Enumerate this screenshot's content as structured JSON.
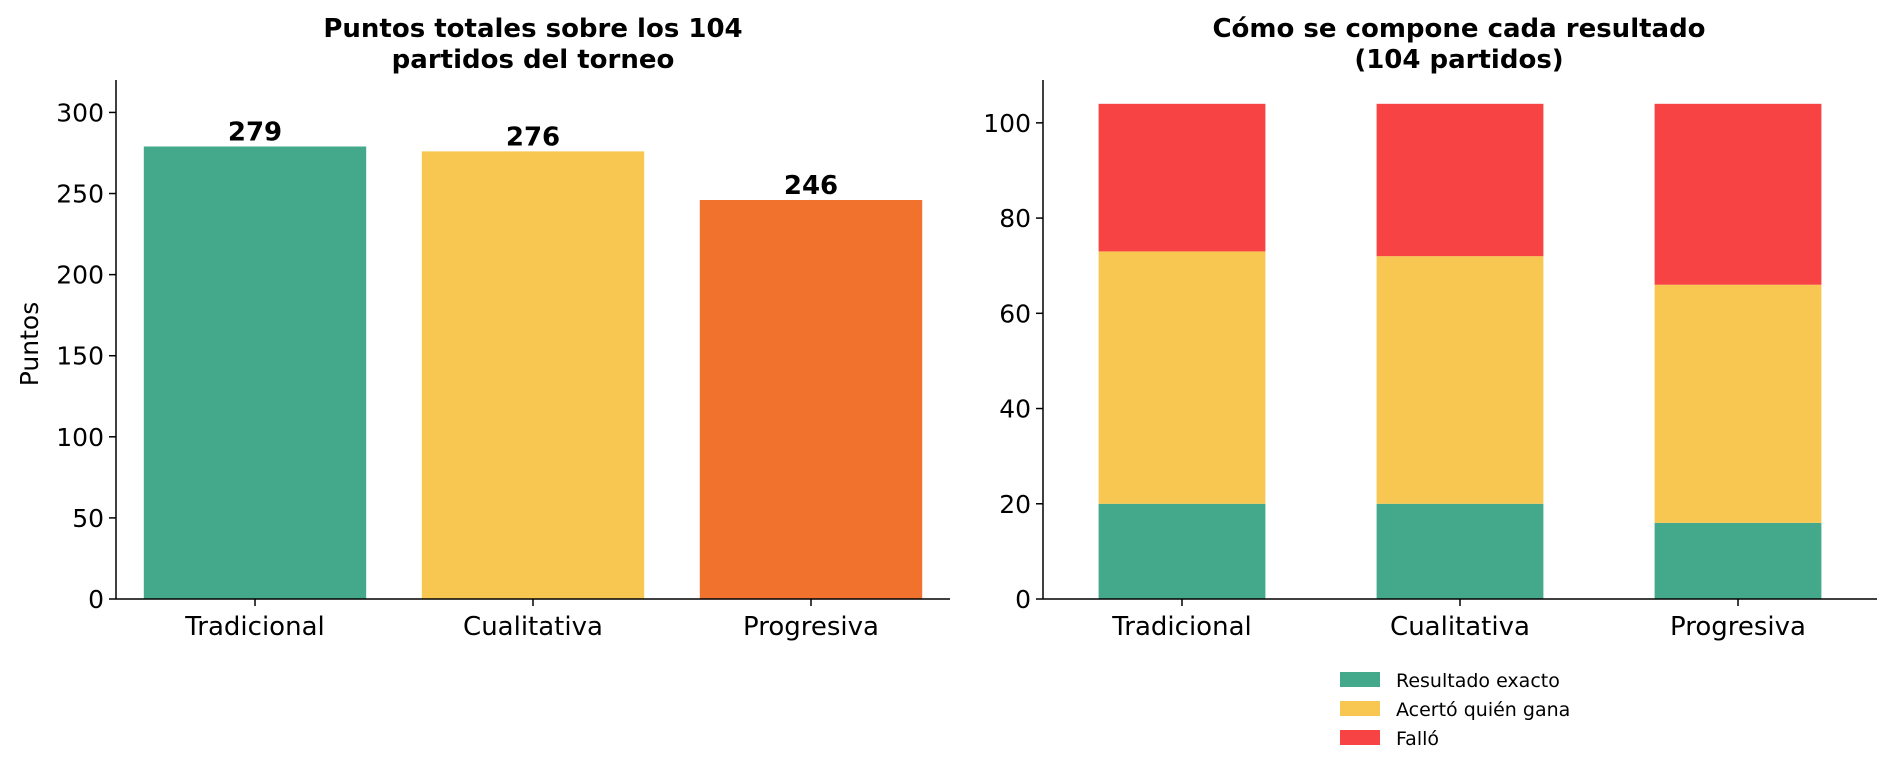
{
  "colors": {
    "green": "#44A98A",
    "yellow": "#F8C751",
    "orange": "#F0722D",
    "red": "#F84345"
  },
  "chart_data": [
    {
      "type": "bar",
      "title_lines": [
        "Puntos totales sobre los 104",
        "partidos del torneo"
      ],
      "xlabel": "",
      "ylabel": "Puntos",
      "categories": [
        "Tradicional",
        "Cualitativa",
        "Progresiva"
      ],
      "values": [
        279,
        276,
        246
      ],
      "value_labels": [
        "279",
        "276",
        "246"
      ],
      "bar_colors": [
        "#44A98A",
        "#F8C751",
        "#F0722D"
      ],
      "ylim": [
        0,
        320
      ],
      "yticks": [
        0,
        50,
        100,
        150,
        200,
        250,
        300
      ],
      "grid": false
    },
    {
      "type": "bar",
      "stacked": true,
      "title_lines": [
        "Cómo se compone cada resultado",
        "(104 partidos)"
      ],
      "xlabel": "",
      "ylabel": "",
      "categories": [
        "Tradicional",
        "Cualitativa",
        "Progresiva"
      ],
      "series": [
        {
          "name": "Resultado exacto",
          "values": [
            20,
            20,
            16
          ],
          "color": "#44A98A"
        },
        {
          "name": "Acertó quién gana",
          "values": [
            53,
            52,
            50
          ],
          "color": "#F8C751"
        },
        {
          "name": "Falló",
          "values": [
            31,
            32,
            38
          ],
          "color": "#F84345"
        }
      ],
      "ylim": [
        0,
        109
      ],
      "yticks": [
        0,
        20,
        40,
        60,
        80,
        100
      ],
      "grid": false,
      "legend_position": "bottom"
    }
  ]
}
